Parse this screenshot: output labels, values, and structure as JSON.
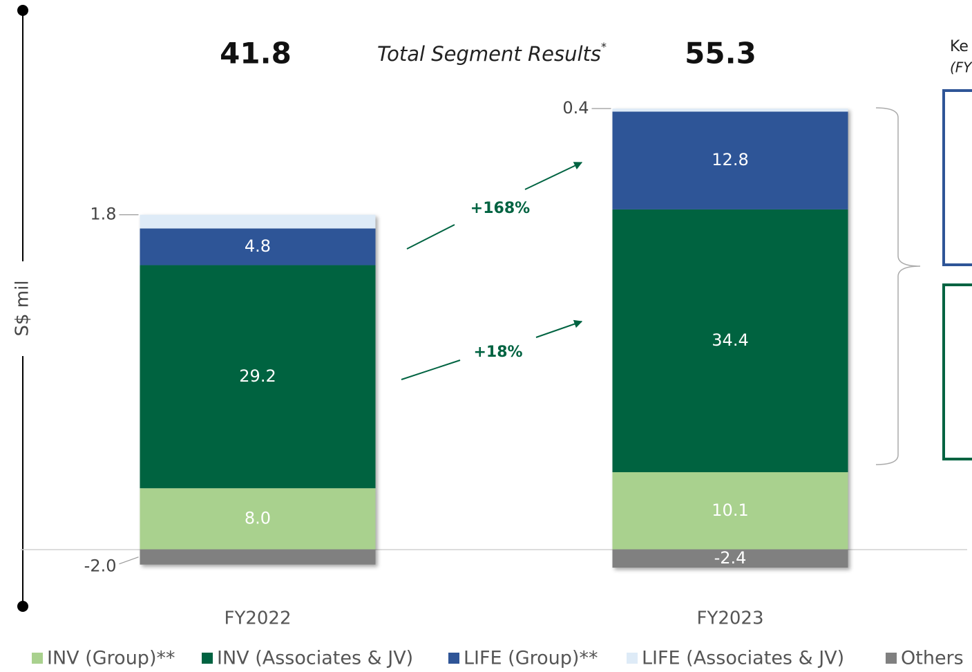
{
  "chart_data": {
    "type": "bar",
    "stacked": true,
    "title": "Total Segment Results",
    "title_note": "*",
    "y_axis_label": "S$ mil",
    "categories": [
      "FY2022",
      "FY2023"
    ],
    "totals": [
      41.8,
      55.3
    ],
    "series": [
      {
        "name": "INV (Group)**",
        "color": "#a9d18e",
        "values": [
          8.0,
          10.1
        ],
        "value_labels": [
          "8.0",
          "10.1"
        ]
      },
      {
        "name": "INV (Associates & JV)",
        "color": "#006341",
        "values": [
          29.2,
          34.4
        ]
      },
      {
        "name": "LIFE (Group)**",
        "color": "#2f5597",
        "values": [
          4.8,
          12.8
        ]
      },
      {
        "name": "LIFE (Associates & JV)",
        "color": "#deebf7",
        "values": [
          1.8,
          0.4
        ]
      },
      {
        "name": "Others",
        "color": "#808080",
        "values": [
          -2.0,
          -2.4
        ],
        "value_labels": [
          "-2.0",
          "-2.4"
        ]
      }
    ],
    "annotations": [
      "+168%",
      "+18%"
    ],
    "side_texts": [
      "Ke",
      "(FY"
    ],
    "ylim": [
      -8,
      62
    ],
    "legend": "bottom"
  }
}
